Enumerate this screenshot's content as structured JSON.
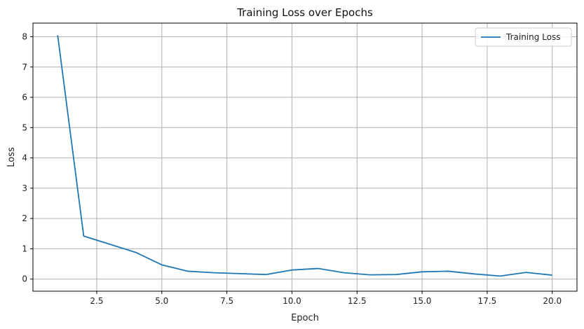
{
  "chart_data": {
    "type": "line",
    "title": "Training Loss over Epochs",
    "xlabel": "Epoch",
    "ylabel": "Loss",
    "xlim": [
      0.05,
      20.95
    ],
    "ylim": [
      -0.4,
      8.45
    ],
    "xticks": [
      2.5,
      5.0,
      7.5,
      10.0,
      12.5,
      15.0,
      17.5,
      20.0
    ],
    "xtick_labels": [
      "2.5",
      "5.0",
      "7.5",
      "10.0",
      "12.5",
      "15.0",
      "17.5",
      "20.0"
    ],
    "yticks": [
      0,
      1,
      2,
      3,
      4,
      5,
      6,
      7,
      8
    ],
    "ytick_labels": [
      "0",
      "1",
      "2",
      "3",
      "4",
      "5",
      "6",
      "7",
      "8"
    ],
    "grid": true,
    "legend_position": "top-right",
    "series": [
      {
        "name": "Training Loss",
        "color": "#1f77b4",
        "x": [
          1,
          2,
          3,
          4,
          5,
          6,
          7,
          8,
          9,
          10,
          11,
          12,
          13,
          14,
          15,
          16,
          17,
          18,
          19,
          20
        ],
        "y": [
          8.05,
          1.42,
          1.15,
          0.88,
          0.47,
          0.26,
          0.21,
          0.18,
          0.15,
          0.3,
          0.35,
          0.21,
          0.14,
          0.15,
          0.24,
          0.26,
          0.17,
          0.1,
          0.22,
          0.13
        ]
      }
    ]
  }
}
